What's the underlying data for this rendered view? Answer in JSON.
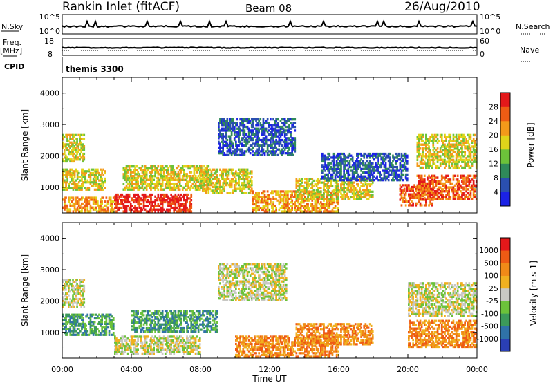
{
  "header": {
    "title": "Rankin Inlet (fitACF)",
    "beam": "Beam 08",
    "date": "26/Aug/2010"
  },
  "noise_panel": {
    "left_label": "N.Sky",
    "left_top_tick": "10^5",
    "left_bottom_tick": "10^0",
    "right_top_tick": "10^5",
    "right_bottom_tick": "10^0",
    "right_label": "N.Search"
  },
  "freq_panel": {
    "left_label_line1": "Freq.",
    "left_label_line2": "[MHz]",
    "left_top_tick": "18",
    "left_bottom_tick": "8",
    "right_top_tick": "60",
    "right_bottom_tick": "0",
    "right_label": "Nave"
  },
  "cpid_panel": {
    "label": "CPID",
    "value": "themis 3300"
  },
  "chart_data": [
    {
      "type": "heatmap",
      "name": "Power",
      "ylabel": "Slant Range [km]",
      "ylim": [
        180,
        4500
      ],
      "yticks": [
        "1000",
        "2000",
        "3000",
        "4000"
      ],
      "xlabel": "Time UT",
      "xticks": [
        "00:00",
        "04:00",
        "08:00",
        "12:00",
        "16:00",
        "20:00",
        "00:00"
      ],
      "colorbar": {
        "label": "Power [dB]",
        "ticks": [
          "4",
          "8",
          "12",
          "16",
          "20",
          "24",
          "28"
        ],
        "colors": [
          "#1b22e6",
          "#2a4fb0",
          "#2f8a5a",
          "#6cc23a",
          "#e0d51a",
          "#f39a1a",
          "#ee5c14",
          "#e3181a"
        ]
      },
      "regions": [
        {
          "t0": 0.0,
          "t1": 1.3,
          "r0": 1800,
          "r1": 2700,
          "level": 4
        },
        {
          "t0": 0.0,
          "t1": 2.5,
          "r0": 900,
          "r1": 1600,
          "level": 4
        },
        {
          "t0": 0.0,
          "t1": 3.0,
          "r0": 200,
          "r1": 700,
          "level": 5
        },
        {
          "t0": 3.0,
          "t1": 7.5,
          "r0": 200,
          "r1": 800,
          "level": 7
        },
        {
          "t0": 3.5,
          "t1": 8.5,
          "r0": 900,
          "r1": 1700,
          "level": 4
        },
        {
          "t0": 8.0,
          "t1": 11.0,
          "r0": 800,
          "r1": 1600,
          "level": 4
        },
        {
          "t0": 9.0,
          "t1": 13.5,
          "r0": 2000,
          "r1": 3200,
          "level": 1
        },
        {
          "t0": 11.0,
          "t1": 16.0,
          "r0": 200,
          "r1": 900,
          "level": 5
        },
        {
          "t0": 13.5,
          "t1": 18.0,
          "r0": 600,
          "r1": 1300,
          "level": 4
        },
        {
          "t0": 15.0,
          "t1": 20.0,
          "r0": 1200,
          "r1": 2100,
          "level": 1
        },
        {
          "t0": 19.5,
          "t1": 21.5,
          "r0": 400,
          "r1": 1100,
          "level": 6
        },
        {
          "t0": 20.5,
          "t1": 24.0,
          "r0": 1600,
          "r1": 2700,
          "level": 4
        },
        {
          "t0": 20.5,
          "t1": 24.0,
          "r0": 600,
          "r1": 1400,
          "level": 6
        }
      ]
    },
    {
      "type": "heatmap",
      "name": "Velocity",
      "ylabel": "Slant Range [km]",
      "ylim": [
        180,
        4500
      ],
      "yticks": [
        "1000",
        "2000",
        "3000",
        "4000"
      ],
      "xlabel": "Time UT",
      "xticks": [
        "00:00",
        "04:00",
        "08:00",
        "12:00",
        "16:00",
        "20:00",
        "00:00"
      ],
      "colorbar": {
        "label": "Velocity [m s-1]",
        "ticks": [
          "1000",
          "500",
          "100",
          "25",
          "-25",
          "-100",
          "-500",
          "-1000"
        ],
        "colors": [
          "#2a3fb5",
          "#2f72a8",
          "#3c9a5a",
          "#6cc23a",
          "#c8c8c4",
          "#f0b020",
          "#f08a18",
          "#ee5a14",
          "#e3181a"
        ]
      },
      "regions": [
        {
          "t0": 0.0,
          "t1": 1.3,
          "r0": 1800,
          "r1": 2700,
          "level": 4
        },
        {
          "t0": 0.0,
          "t1": 3.0,
          "r0": 900,
          "r1": 1600,
          "level": 2
        },
        {
          "t0": 3.0,
          "t1": 8.0,
          "r0": 300,
          "r1": 900,
          "level": 4
        },
        {
          "t0": 4.0,
          "t1": 9.0,
          "r0": 1000,
          "r1": 1700,
          "level": 2
        },
        {
          "t0": 9.0,
          "t1": 13.0,
          "r0": 2000,
          "r1": 3200,
          "level": 4
        },
        {
          "t0": 10.0,
          "t1": 16.0,
          "r0": 200,
          "r1": 900,
          "level": 6
        },
        {
          "t0": 13.5,
          "t1": 18.0,
          "r0": 600,
          "r1": 1300,
          "level": 6
        },
        {
          "t0": 20.0,
          "t1": 24.0,
          "r0": 1500,
          "r1": 2600,
          "level": 4
        },
        {
          "t0": 20.0,
          "t1": 24.0,
          "r0": 500,
          "r1": 1400,
          "level": 6
        }
      ]
    }
  ]
}
